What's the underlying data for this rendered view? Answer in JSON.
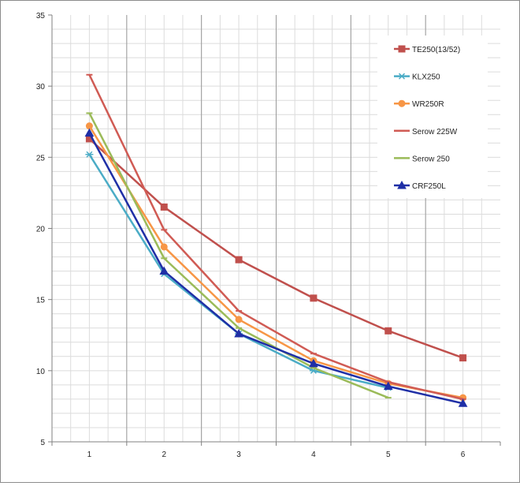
{
  "chart_data": {
    "type": "line",
    "title": "",
    "xlabel": "",
    "ylabel": "",
    "x": [
      1,
      2,
      3,
      4,
      5,
      6
    ],
    "x_tick_labels": [
      "1",
      "2",
      "3",
      "4",
      "5",
      "6"
    ],
    "ylim": [
      5,
      35
    ],
    "y_ticks": [
      5,
      10,
      15,
      20,
      25,
      30,
      35
    ],
    "y_tick_labels": [
      "5",
      "10",
      "15",
      "20",
      "25",
      "30",
      "35"
    ],
    "grid": {
      "major_vertical": true,
      "major_horizontal": false,
      "minor": true
    },
    "legend": {
      "position": "top-right"
    },
    "series": [
      {
        "name": "TE250(13/52)",
        "color": "#c0504d",
        "marker": "square",
        "values": [
          26.3,
          21.5,
          17.8,
          15.1,
          12.8,
          10.9
        ]
      },
      {
        "name": "KLX250",
        "color": "#4bacc6",
        "marker": "asterisk",
        "values": [
          25.2,
          16.8,
          12.6,
          10.0,
          8.8,
          null
        ]
      },
      {
        "name": "WR250R",
        "color": "#f79646",
        "marker": "circle",
        "values": [
          27.2,
          18.7,
          13.6,
          10.7,
          9.1,
          8.1
        ]
      },
      {
        "name": "Serow 225W",
        "color": "#d05b54",
        "marker": "dash",
        "values": [
          30.8,
          19.9,
          14.2,
          11.2,
          9.2,
          8.0
        ]
      },
      {
        "name": "Serow 250",
        "color": "#9bbb59",
        "marker": "dash",
        "values": [
          28.1,
          17.9,
          13.0,
          10.2,
          8.1,
          null
        ]
      },
      {
        "name": "CRF250L",
        "color": "#1f2fa6",
        "marker": "triangle",
        "values": [
          26.7,
          17.0,
          12.6,
          10.5,
          8.9,
          7.7
        ]
      }
    ]
  }
}
